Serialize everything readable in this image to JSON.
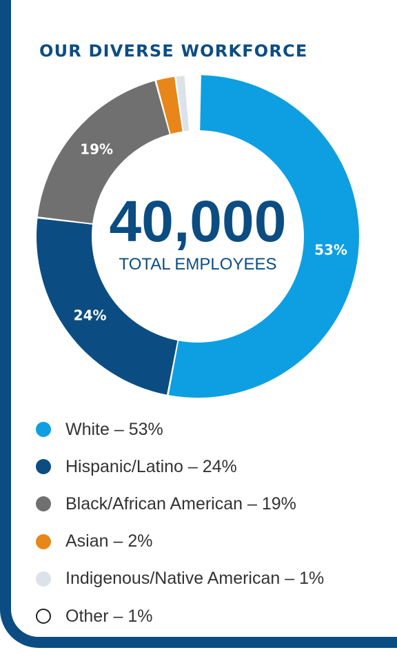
{
  "chart_data": {
    "type": "pie",
    "title": "OUR DIVERSE WORKFORCE",
    "center_value": "40,000",
    "center_label": "TOTAL EMPLOYEES",
    "categories": [
      "White",
      "Hispanic/Latino",
      "Black/African American",
      "Asian",
      "Indigenous/Native American",
      "Other"
    ],
    "values": [
      53,
      24,
      19,
      2,
      1,
      1
    ],
    "slice_labels": [
      "53%",
      "24%",
      "19%",
      "",
      "",
      ""
    ],
    "colors": [
      "#0d9fe2",
      "#0b4d82",
      "#707070",
      "#e8861a",
      "#dbe2ea",
      "#ffffff"
    ],
    "legend": [
      {
        "label": "White – 53%",
        "color": "#0d9fe2"
      },
      {
        "label": "Hispanic/Latino – 24%",
        "color": "#0b4d82"
      },
      {
        "label": "Black/African American – 19%",
        "color": "#707070"
      },
      {
        "label": "Asian – 2%",
        "color": "#e8861a"
      },
      {
        "label": "Indigenous/Native American – 1%",
        "color": "#dbe2ea"
      },
      {
        "label": "Other – 1%",
        "color": "#ffffff"
      }
    ],
    "legend_placement": "bottom"
  }
}
